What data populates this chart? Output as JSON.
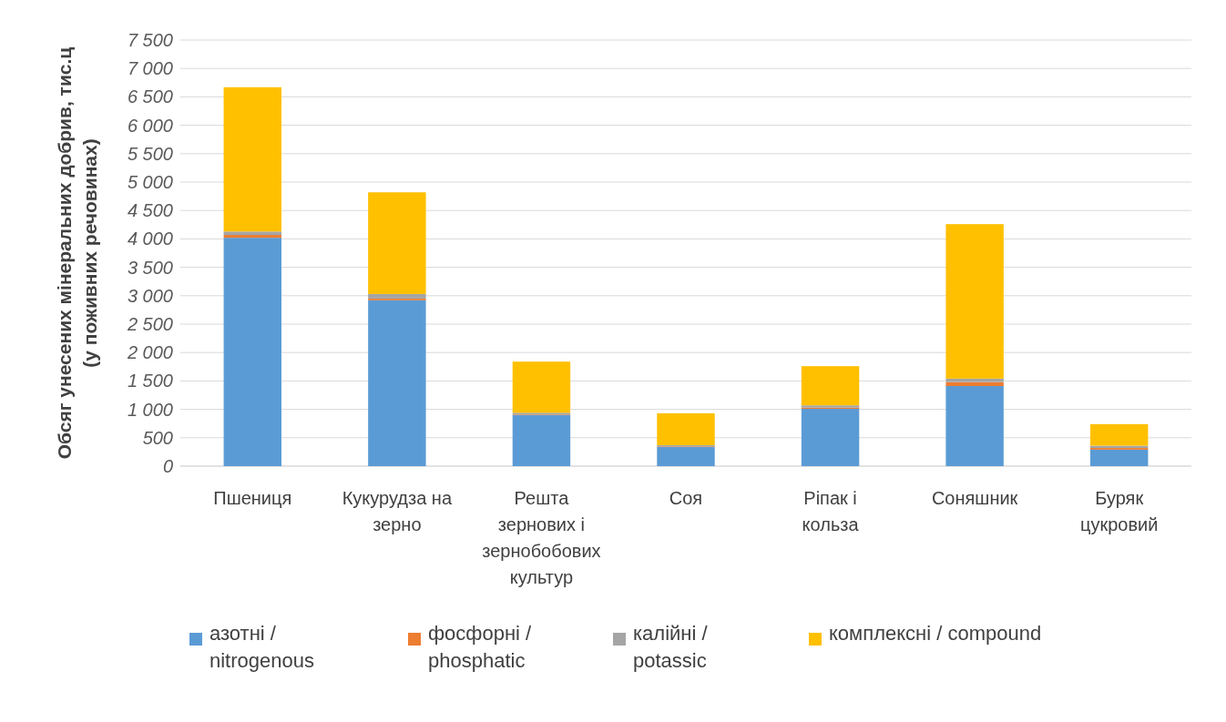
{
  "chart_data": {
    "type": "bar",
    "stacked": true,
    "ylabel": "Обсяг унесених мінеральних добрив, тис.ц (у поживних речовинах)",
    "categories": [
      "Пшениця",
      "Кукурудза на зерно",
      "Решта зернових і зернобобових культур",
      "Соя",
      "Ріпак і кольза",
      "Соняшник",
      "Буряк цукровий"
    ],
    "series": [
      {
        "name": "азотні / nitrogenous",
        "color": "#5b9bd5",
        "values": [
          4020,
          2920,
          900,
          340,
          1010,
          1410,
          290
        ]
      },
      {
        "name": "фосфорні / phosphatic",
        "color": "#ed7d31",
        "values": [
          50,
          30,
          10,
          10,
          20,
          70,
          30
        ]
      },
      {
        "name": "калійні / potassic",
        "color": "#a5a5a5",
        "values": [
          60,
          80,
          30,
          20,
          40,
          60,
          40
        ]
      },
      {
        "name": "комплексні / compound",
        "color": "#ffc000",
        "values": [
          2540,
          1790,
          900,
          560,
          690,
          2720,
          380
        ]
      }
    ],
    "ylim": [
      0,
      7500
    ],
    "yticks": [
      {
        "value": 0,
        "label": "0"
      },
      {
        "value": 500,
        "label": "500"
      },
      {
        "value": 1000,
        "label": "1 000"
      },
      {
        "value": 1500,
        "label": "1 500"
      },
      {
        "value": 2000,
        "label": "2 000"
      },
      {
        "value": 2500,
        "label": "2 500"
      },
      {
        "value": 3000,
        "label": "3 000"
      },
      {
        "value": 3500,
        "label": "3 500"
      },
      {
        "value": 4000,
        "label": "4 000"
      },
      {
        "value": 4500,
        "label": "4 500"
      },
      {
        "value": 5000,
        "label": "5 000"
      },
      {
        "value": 5500,
        "label": "5 500"
      },
      {
        "value": 6000,
        "label": "6 000"
      },
      {
        "value": 6500,
        "label": "6 500"
      },
      {
        "value": 7000,
        "label": "7 000"
      },
      {
        "value": 7500,
        "label": "7 500"
      }
    ],
    "grid": "y",
    "legend": "bottom"
  }
}
